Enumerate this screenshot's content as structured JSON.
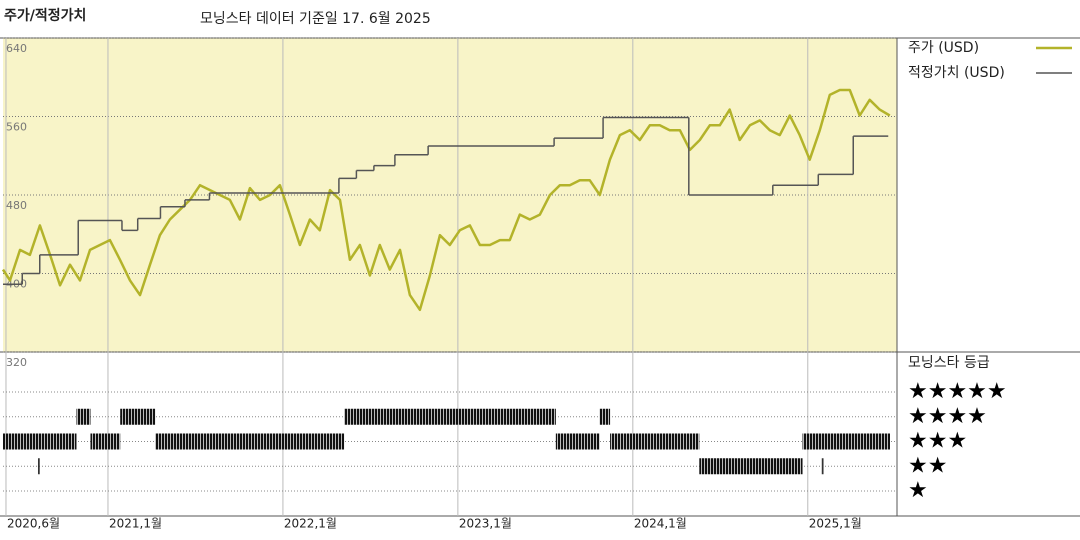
{
  "chart_data": {
    "type": "line",
    "title": "주가/적정가치",
    "subtitle": "모닝스타 데이터 기준일 17. 6월 2025",
    "rating_title": "모닝스타 등급",
    "xlim": [
      2020.4,
      2025.51
    ],
    "ylim": [
      320,
      640
    ],
    "xticks": [
      {
        "value": 2020.417,
        "label": "2020,6월"
      },
      {
        "value": 2021,
        "label": "2021,1월"
      },
      {
        "value": 2022,
        "label": "2022,1월"
      },
      {
        "value": 2023,
        "label": "2023,1월"
      },
      {
        "value": 2024,
        "label": "2024,1월"
      },
      {
        "value": 2025,
        "label": "2025,1월"
      }
    ],
    "yticks": [
      320,
      400,
      480,
      560,
      640
    ],
    "grid": true,
    "series": [
      {
        "name": "주가 (USD)",
        "color": "#b3b32a",
        "step": false,
        "x": [
          2020.4,
          2020.44,
          2020.497,
          2020.554,
          2020.611,
          2020.669,
          2020.726,
          2020.783,
          2020.84,
          2020.897,
          2020.954,
          2021.011,
          2021.069,
          2021.126,
          2021.183,
          2021.24,
          2021.297,
          2021.354,
          2021.411,
          2021.469,
          2021.526,
          2021.583,
          2021.64,
          2021.697,
          2021.754,
          2021.811,
          2021.869,
          2021.926,
          2021.983,
          2022.04,
          2022.097,
          2022.154,
          2022.211,
          2022.269,
          2022.326,
          2022.383,
          2022.44,
          2022.497,
          2022.554,
          2022.611,
          2022.669,
          2022.726,
          2022.783,
          2022.84,
          2022.897,
          2022.954,
          2023.011,
          2023.069,
          2023.126,
          2023.183,
          2023.24,
          2023.297,
          2023.354,
          2023.411,
          2023.469,
          2023.526,
          2023.583,
          2023.64,
          2023.697,
          2023.754,
          2023.811,
          2023.869,
          2023.926,
          2023.983,
          2024.04,
          2024.097,
          2024.154,
          2024.211,
          2024.269,
          2024.326,
          2024.383,
          2024.44,
          2024.497,
          2024.554,
          2024.611,
          2024.669,
          2024.726,
          2024.783,
          2024.84,
          2024.897,
          2024.954,
          2025.011,
          2025.069,
          2025.126,
          2025.183,
          2025.24,
          2025.297,
          2025.354,
          2025.411,
          2025.469
        ],
        "values": [
          404,
          393,
          424,
          419,
          449,
          419,
          388,
          409,
          393,
          424,
          429,
          434,
          414,
          393,
          378,
          409,
          439,
          455,
          465,
          475,
          490,
          485,
          480,
          475,
          455,
          487,
          475,
          480,
          490,
          460,
          429,
          455,
          444,
          485,
          475,
          414,
          429,
          398,
          429,
          404,
          424,
          378,
          363,
          398,
          439,
          429,
          444,
          449,
          429,
          429,
          434,
          434,
          460,
          455,
          460,
          480,
          490,
          490,
          495,
          495,
          480,
          516,
          541,
          546,
          536,
          551,
          551,
          546,
          546,
          526,
          536,
          551,
          551,
          567,
          536,
          551,
          556,
          546,
          541,
          561,
          541,
          516,
          546,
          582,
          587,
          587,
          561,
          577,
          567,
          561
        ]
      },
      {
        "name": "적정가치 (USD)",
        "color": "#555555",
        "step": true,
        "x": [
          2020.4,
          2020.51,
          2020.61,
          2020.83,
          2021.08,
          2021.17,
          2021.3,
          2021.44,
          2021.58,
          2022.32,
          2022.42,
          2022.52,
          2022.64,
          2022.83,
          2023.55,
          2023.83,
          2024.32,
          2024.8,
          2025.06,
          2025.26,
          2025.46
        ],
        "values": [
          389,
          400,
          419,
          454,
          444,
          456,
          468,
          475,
          482,
          497,
          505,
          510,
          521,
          530,
          538,
          559,
          480,
          490,
          501,
          540,
          540
        ]
      }
    ],
    "rating_labels": [
      "★★★★★",
      "★★★★",
      "★★★",
      "★★",
      "★"
    ],
    "ratings": [
      {
        "start": 2020.4,
        "end": 2020.82,
        "stars": 3
      },
      {
        "start": 2020.6,
        "end": 2020.61,
        "stars": 2
      },
      {
        "start": 2020.82,
        "end": 2020.9,
        "stars": 4
      },
      {
        "start": 2020.9,
        "end": 2021.07,
        "stars": 3
      },
      {
        "start": 2021.07,
        "end": 2021.27,
        "stars": 4
      },
      {
        "start": 2021.27,
        "end": 2022.35,
        "stars": 3
      },
      {
        "start": 2022.35,
        "end": 2023.56,
        "stars": 4
      },
      {
        "start": 2023.56,
        "end": 2023.81,
        "stars": 3
      },
      {
        "start": 2023.81,
        "end": 2023.87,
        "stars": 4
      },
      {
        "start": 2023.87,
        "end": 2024.38,
        "stars": 3
      },
      {
        "start": 2024.38,
        "end": 2024.97,
        "stars": 2
      },
      {
        "start": 2024.97,
        "end": 2025.47,
        "stars": 3
      },
      {
        "start": 2025.08,
        "end": 2025.09,
        "stars": 2
      }
    ]
  }
}
